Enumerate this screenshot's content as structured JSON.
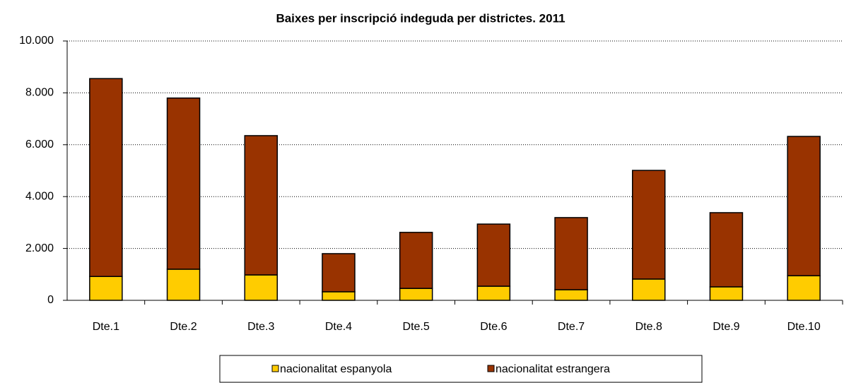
{
  "chart_data": {
    "type": "stacked_bar",
    "title": "Baixes per inscripció indeguda per districtes. 2011",
    "categories": [
      "Dte.1",
      "Dte.2",
      "Dte.3",
      "Dte.4",
      "Dte.5",
      "Dte.6",
      "Dte.7",
      "Dte.8",
      "Dte.9",
      "Dte.10"
    ],
    "series": [
      {
        "name": "nacionalitat espanyola",
        "color": "#ffcc00",
        "values": [
          920,
          1200,
          980,
          330,
          460,
          545,
          410,
          820,
          520,
          950
        ]
      },
      {
        "name": "nacionalitat estrangera",
        "color": "#993300",
        "values": [
          7630,
          6600,
          5370,
          1470,
          2160,
          2395,
          2780,
          4190,
          2860,
          5370
        ]
      }
    ],
    "ylim": [
      0,
      10000
    ],
    "yticks": [
      0,
      {
        "value": 2000,
        "label": "2.000"
      },
      {
        "value": 4000,
        "label": "4.000"
      },
      {
        "value": 6000,
        "label": "6.000"
      },
      {
        "value": 8000,
        "label": "8.000"
      },
      {
        "value": 10000,
        "label": "10.000"
      }
    ],
    "grid": true,
    "legend": "bottom"
  }
}
